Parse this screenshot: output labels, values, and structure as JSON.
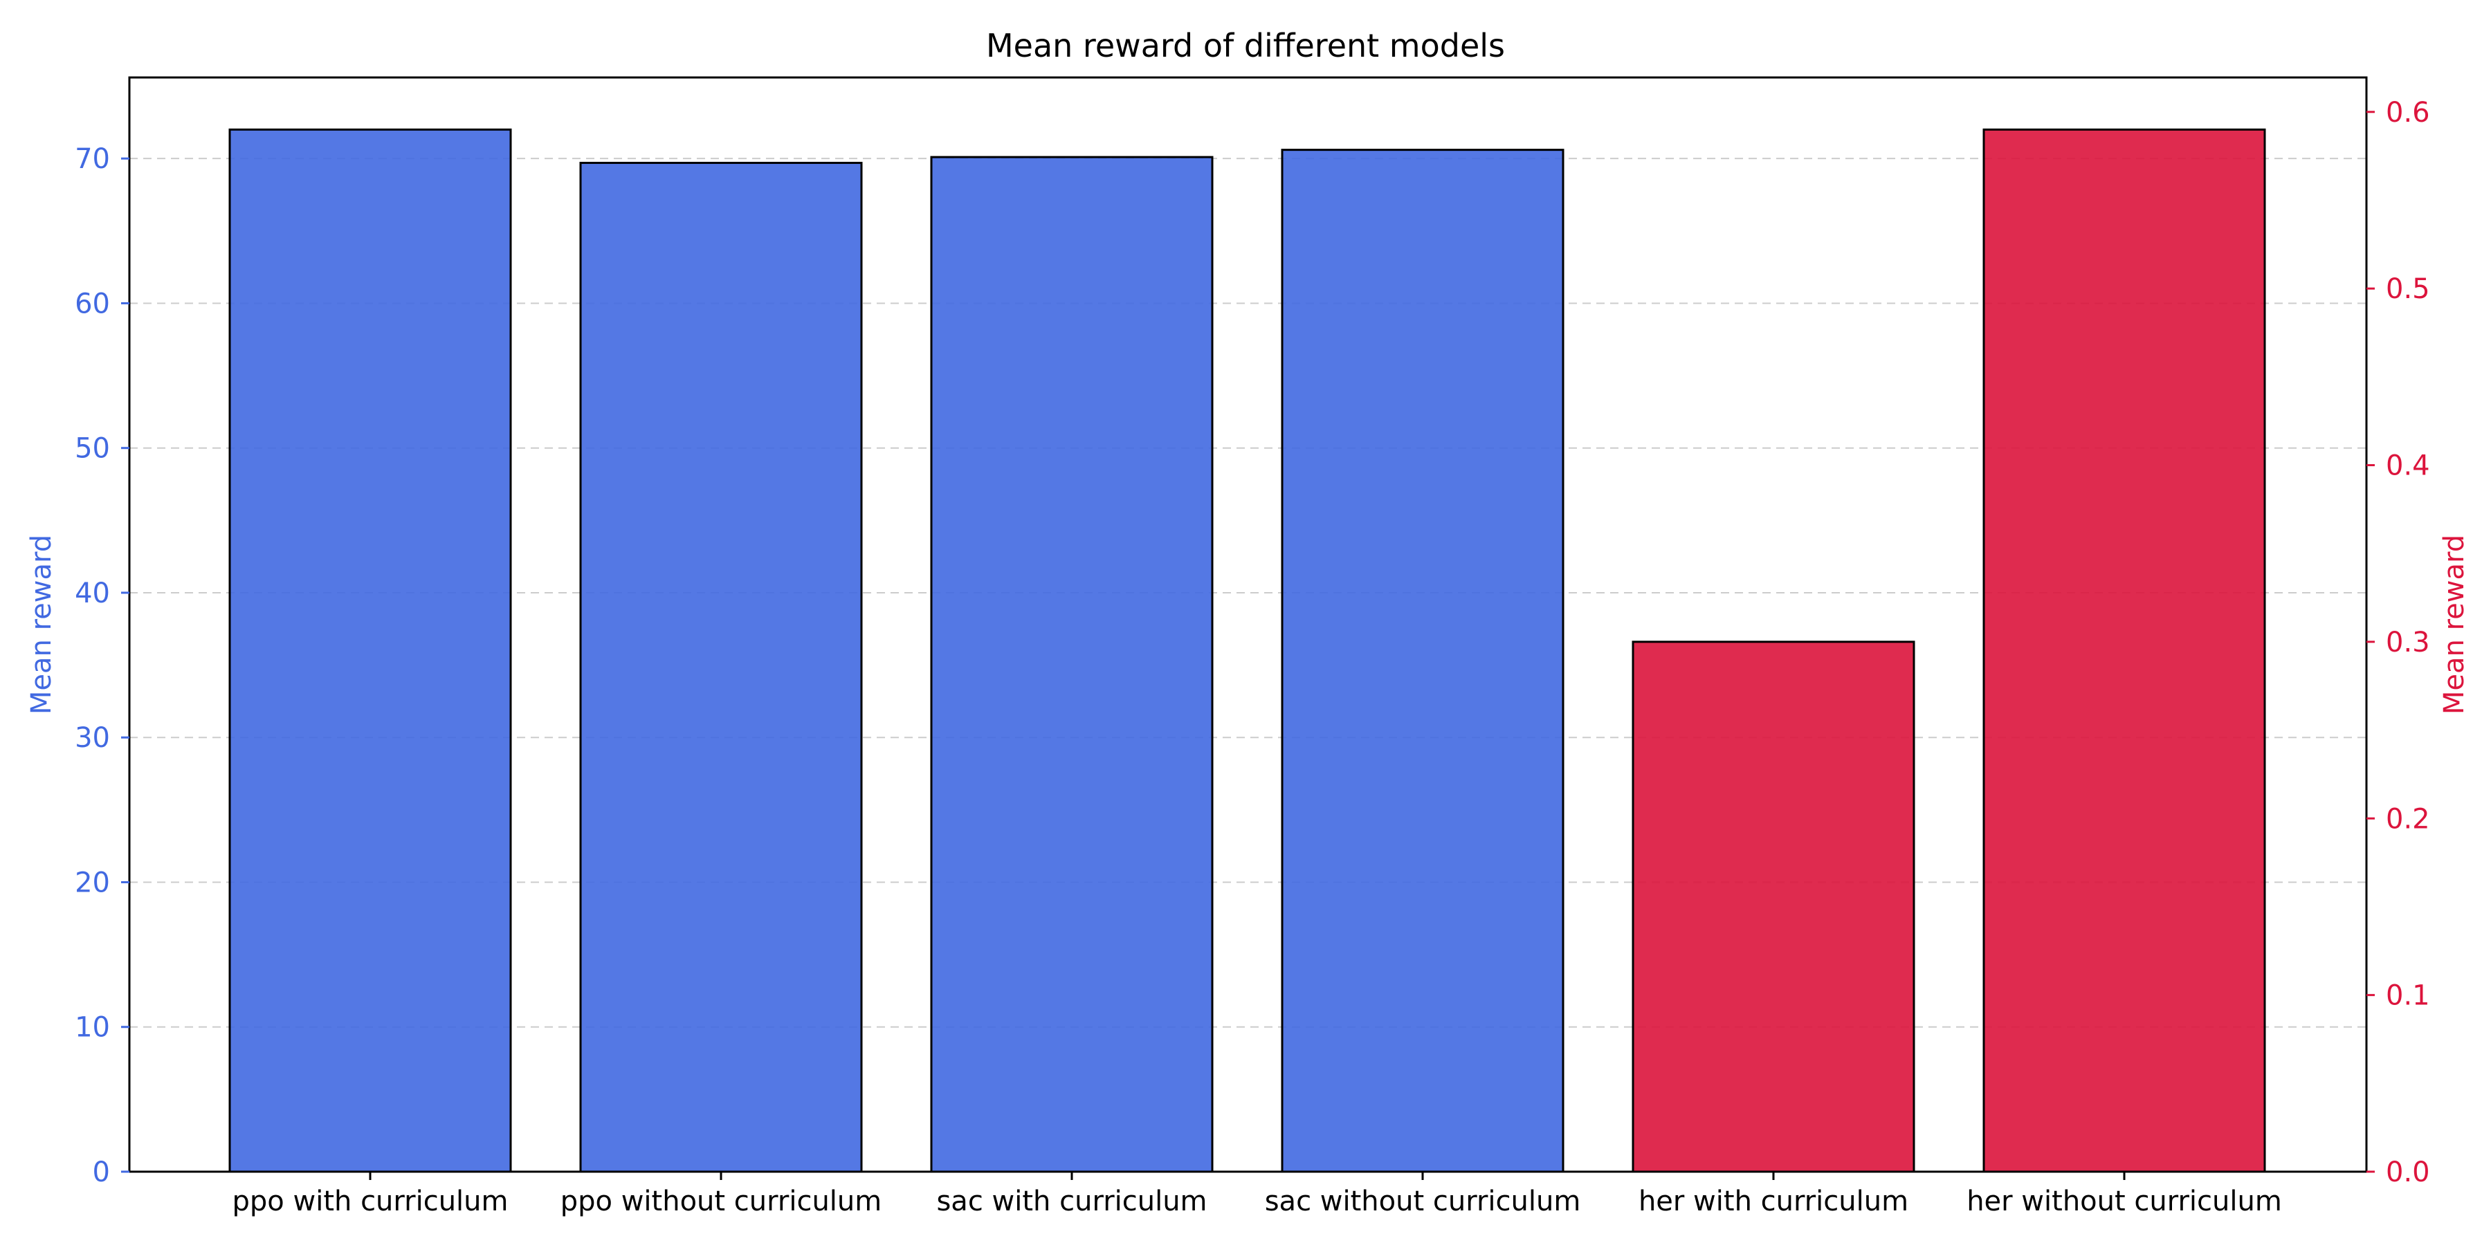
{
  "chart_data": {
    "type": "bar",
    "title": "Mean reward of different models",
    "categories": [
      "ppo with curriculum",
      "ppo without curriculum",
      "sac with curriculum",
      "sac without curriculum",
      "her with curriculum",
      "her without curriculum"
    ],
    "series": [
      {
        "values": [
          72.0,
          69.7,
          70.1,
          70.6,
          null,
          null
        ],
        "axis": "left",
        "color": "#4169E1"
      },
      {
        "values": [
          null,
          null,
          null,
          null,
          0.3,
          0.59
        ],
        "axis": "right",
        "color": "#DC143C"
      }
    ],
    "left_axis": {
      "label": "Mean reward",
      "ylim": [
        0,
        75.6
      ],
      "ticks": [
        0,
        10,
        20,
        30,
        40,
        50,
        60,
        70
      ],
      "color": "#4169E1"
    },
    "right_axis": {
      "label": "Mean reward",
      "ylim": [
        0,
        0.6195
      ],
      "ticks": [
        "0.0",
        "0.1",
        "0.2",
        "0.3",
        "0.4",
        "0.5",
        "0.6"
      ],
      "color": "#DC143C"
    },
    "grid": "horizontal dashed"
  }
}
